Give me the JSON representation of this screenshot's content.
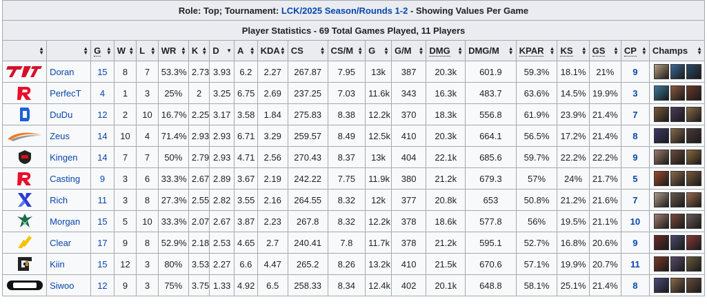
{
  "caption": {
    "prefix": "Role: Top; Tournament: ",
    "tournament": "LCK/2025 Season/Rounds 1-2",
    "suffix": " - Showing Values Per Game",
    "subtitle": "Player Statistics - 69 Total Games Played, 11 Players"
  },
  "headers": {
    "g": "G",
    "w": "W",
    "l": "L",
    "wr": "WR",
    "k": "K",
    "d": "D",
    "a": "A",
    "kda": "KDA",
    "cs": "CS",
    "csm": "CS/M",
    "gold": "G",
    "gm": "G/M",
    "dmg": "DMG",
    "dmgm": "DMG/M",
    "kpar": "KPAR",
    "ks": "KS",
    "gs": "GS",
    "cp": "CP",
    "champs": "Champs"
  },
  "rows": [
    {
      "team": "T1",
      "player": "Doran",
      "g": "15",
      "w": "8",
      "l": "7",
      "wr": "53.3%",
      "k": "2.73",
      "d": "3.93",
      "a": "6.2",
      "kda": "2.27",
      "cs": "267.87",
      "csm": "7.95",
      "gold": "13k",
      "gm": "387",
      "dmg": "20.3k",
      "dmgm": "601.9",
      "kpar": "59.3%",
      "ks": "18.1%",
      "gs": "21%",
      "cp": "9",
      "champs": [
        "#b8a080",
        "#3a6a9a",
        "#2a4a6a"
      ]
    },
    {
      "team": "KT Rolster",
      "player": "PerfecT",
      "g": "4",
      "w": "1",
      "l": "3",
      "wr": "25%",
      "k": "2",
      "d": "3.25",
      "a": "6.75",
      "kda": "2.69",
      "cs": "237.25",
      "csm": "7.03",
      "gold": "11.6k",
      "gm": "343",
      "dmg": "16.3k",
      "dmgm": "483.7",
      "kpar": "63.6%",
      "ks": "14.5%",
      "gs": "19.9%",
      "cp": "3",
      "champs": [
        "#3a7a9a",
        "#8a5a3a",
        "#6a3a2a"
      ]
    },
    {
      "team": "Dplus KIA",
      "player": "DuDu",
      "g": "12",
      "w": "2",
      "l": "10",
      "wr": "16.7%",
      "k": "2.25",
      "d": "3.17",
      "a": "3.58",
      "kda": "1.84",
      "cs": "275.83",
      "csm": "8.38",
      "gold": "12.2k",
      "gm": "370",
      "dmg": "18.3k",
      "dmgm": "556.8",
      "kpar": "61.9%",
      "ks": "23.9%",
      "gs": "21.4%",
      "cp": "7",
      "champs": [
        "#7a5a3a",
        "#4a3a5a",
        "#8a6a4a"
      ]
    },
    {
      "team": "Hanwha Life Esports",
      "player": "Zeus",
      "g": "14",
      "w": "10",
      "l": "4",
      "wr": "71.4%",
      "k": "2.93",
      "d": "2.93",
      "a": "6.71",
      "kda": "3.29",
      "cs": "259.57",
      "csm": "8.49",
      "gold": "12.5k",
      "gm": "410",
      "dmg": "20.3k",
      "dmgm": "664.1",
      "kpar": "56.5%",
      "ks": "17.2%",
      "gs": "21.4%",
      "cp": "8",
      "champs": [
        "#3a3a6a",
        "#8a6a4a",
        "#4a3a3a"
      ]
    },
    {
      "team": "Nongshim RedForce",
      "player": "Kingen",
      "g": "14",
      "w": "7",
      "l": "7",
      "wr": "50%",
      "k": "2.79",
      "d": "2.93",
      "a": "4.71",
      "kda": "2.56",
      "cs": "270.43",
      "csm": "8.37",
      "gold": "13k",
      "gm": "404",
      "dmg": "22.1k",
      "dmgm": "685.6",
      "kpar": "59.7%",
      "ks": "22.2%",
      "gs": "22.2%",
      "cp": "9",
      "champs": [
        "#9a7a6a",
        "#6a4a3a",
        "#8a6a3a"
      ]
    },
    {
      "team": "KT Rolster",
      "player": "Casting",
      "g": "9",
      "w": "3",
      "l": "6",
      "wr": "33.3%",
      "k": "2.67",
      "d": "2.89",
      "a": "3.67",
      "kda": "2.19",
      "cs": "242.22",
      "csm": "7.75",
      "gold": "11.9k",
      "gm": "380",
      "dmg": "21.2k",
      "dmgm": "679.3",
      "kpar": "57%",
      "ks": "24%",
      "gs": "21.7%",
      "cp": "5",
      "champs": [
        "#9a4a2a",
        "#8a6a4a",
        "#7a5a3a"
      ]
    },
    {
      "team": "DRX",
      "player": "Rich",
      "g": "11",
      "w": "3",
      "l": "8",
      "wr": "27.3%",
      "k": "2.55",
      "d": "2.82",
      "a": "3.55",
      "kda": "2.16",
      "cs": "264.55",
      "csm": "8.32",
      "gold": "12k",
      "gm": "377",
      "dmg": "20.8k",
      "dmgm": "653",
      "kpar": "50.8%",
      "ks": "21.2%",
      "gs": "21.6%",
      "cp": "7",
      "champs": [
        "#b09a8a",
        "#6a5a4a",
        "#9a6a4a"
      ]
    },
    {
      "team": "OKSavingsBank BRION",
      "player": "Morgan",
      "g": "15",
      "w": "5",
      "l": "10",
      "wr": "33.3%",
      "k": "2.07",
      "d": "2.67",
      "a": "3.87",
      "kda": "2.23",
      "cs": "267.8",
      "csm": "8.32",
      "gold": "12.2k",
      "gm": "378",
      "dmg": "18.6k",
      "dmgm": "577.8",
      "kpar": "56%",
      "ks": "19.5%",
      "gs": "21.1%",
      "cp": "10",
      "champs": [
        "#a08070",
        "#7a4a3a",
        "#6a5a5a"
      ]
    },
    {
      "team": "BNK FearX",
      "player": "Clear",
      "g": "17",
      "w": "9",
      "l": "8",
      "wr": "52.9%",
      "k": "2.18",
      "d": "2.53",
      "a": "4.65",
      "kda": "2.7",
      "cs": "240.41",
      "csm": "7.8",
      "gold": "11.7k",
      "gm": "378",
      "dmg": "21.2k",
      "dmgm": "595.1",
      "kpar": "52.7%",
      "ks": "16.8%",
      "gs": "20.6%",
      "cp": "9",
      "champs": [
        "#6a2a2a",
        "#4a4a6a",
        "#8a3a3a"
      ]
    },
    {
      "team": "Gen.G",
      "player": "Kiin",
      "g": "15",
      "w": "12",
      "l": "3",
      "wr": "80%",
      "k": "3.53",
      "d": "2.27",
      "a": "6.6",
      "kda": "4.47",
      "cs": "265.2",
      "csm": "8.26",
      "gold": "13.2k",
      "gm": "410",
      "dmg": "21.5k",
      "dmgm": "670.6",
      "kpar": "57.1%",
      "ks": "19.9%",
      "gs": "20.7%",
      "cp": "11",
      "champs": [
        "#7a3a2a",
        "#5a4a6a",
        "#6a5a3a"
      ]
    },
    {
      "team": "Dplus KIA",
      "player": "Siwoo",
      "g": "12",
      "w": "9",
      "l": "3",
      "wr": "75%",
      "k": "3.75",
      "d": "1.33",
      "a": "4.92",
      "kda": "6.5",
      "cs": "258.33",
      "csm": "8.34",
      "gold": "12.4k",
      "gm": "402",
      "dmg": "20.1k",
      "dmgm": "648.8",
      "kpar": "58.1%",
      "ks": "25.1%",
      "gs": "21.4%",
      "cp": "8",
      "champs": [
        "#4a4a7a",
        "#8a6a4a",
        "#6a4a3a"
      ]
    }
  ]
}
